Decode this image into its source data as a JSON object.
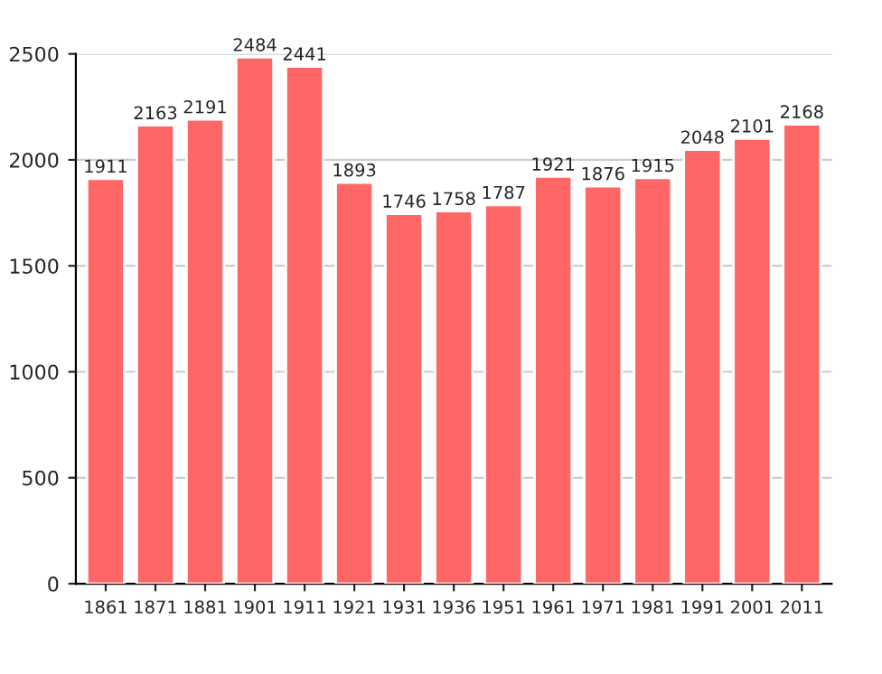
{
  "chart_data": {
    "type": "bar",
    "categories": [
      "1861",
      "1871",
      "1881",
      "1901",
      "1911",
      "1921",
      "1931",
      "1936",
      "1951",
      "1961",
      "1971",
      "1981",
      "1991",
      "2001",
      "2011"
    ],
    "values": [
      1911,
      2163,
      2191,
      2484,
      2441,
      1893,
      1746,
      1758,
      1787,
      1921,
      1876,
      1915,
      2048,
      2101,
      2168
    ],
    "color": "#ff6666",
    "ylim": [
      0,
      2500
    ],
    "yticks": [
      0,
      500,
      1000,
      1500,
      2000,
      2500
    ],
    "grid": "y",
    "data_labels": true
  }
}
